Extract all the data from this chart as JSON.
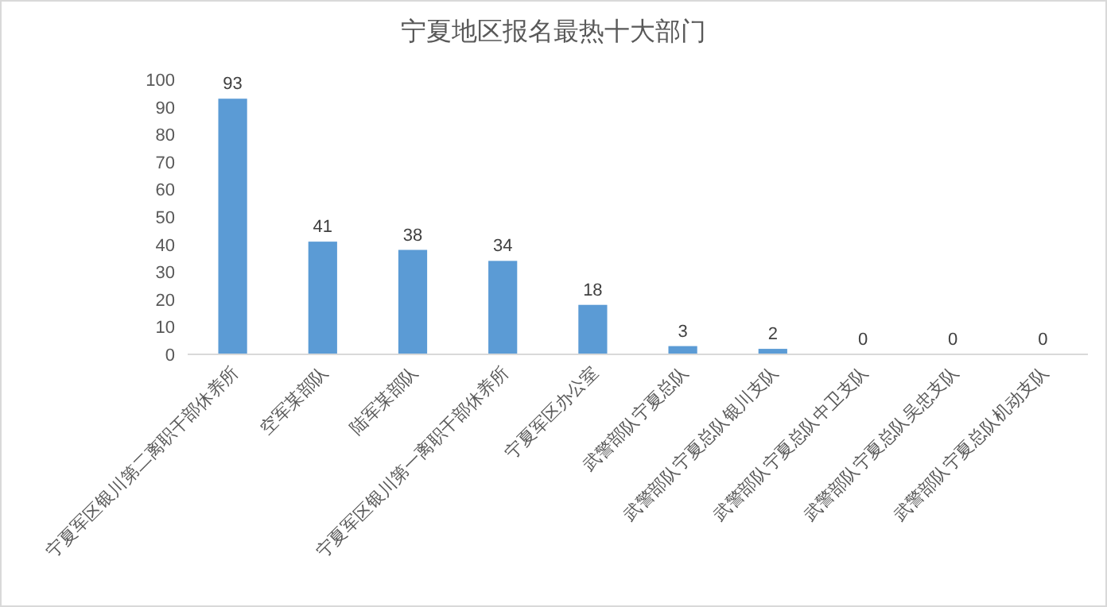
{
  "chart_data": {
    "type": "bar",
    "title": "宁夏地区报名最热十大部门",
    "categories": [
      "宁夏军区银川第二离职干部休养所",
      "空军某部队",
      "陆军某部队",
      "宁夏军区银川第一离职干部休养所",
      "宁夏军区办公室",
      "武警部队宁夏总队",
      "武警部队宁夏总队银川支队",
      "武警部队宁夏总队中卫支队",
      "武警部队宁夏总队吴忠支队",
      "武警部队宁夏总队机动支队"
    ],
    "values": [
      93,
      41,
      38,
      34,
      18,
      3,
      2,
      0,
      0,
      0
    ],
    "color": "#5b9bd5",
    "ylim": [
      0,
      100
    ],
    "yticks": [
      0,
      10,
      20,
      30,
      40,
      50,
      60,
      70,
      80,
      90,
      100
    ],
    "data_labels": true,
    "grid": false
  }
}
